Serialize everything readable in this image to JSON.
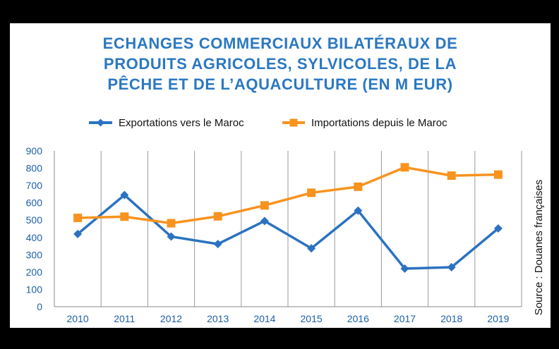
{
  "title_lines": [
    "ECHANGES COMMERCIAUX BILATÉRAUX DE",
    "PRODUITS AGRICOLES, SYLVICOLES, DE LA",
    "PÊCHE ET DE L’AQUACULTURE (EN M EUR)"
  ],
  "source": "Source : Douanes françaises",
  "colors": {
    "exports": "#2b72c0",
    "imports": "#f7931e",
    "title": "#2b78c2",
    "ticks": "#1f5fa8"
  },
  "chart_data": {
    "type": "line",
    "title": "ECHANGES COMMERCIAUX BILATÉRAUX DE PRODUITS AGRICOLES, SYLVICOLES, DE LA PÊCHE ET DE L’AQUACULTURE (EN M EUR)",
    "categories": [
      "2010",
      "2011",
      "2012",
      "2013",
      "2014",
      "2015",
      "2016",
      "2017",
      "2018",
      "2019"
    ],
    "series": [
      {
        "name": "Exportations vers le Maroc",
        "marker": "diamond",
        "values": [
          420,
          645,
          405,
          362,
          495,
          337,
          555,
          220,
          228,
          452
        ]
      },
      {
        "name": "Importations depuis le Maroc",
        "marker": "square",
        "values": [
          513,
          520,
          482,
          522,
          585,
          658,
          693,
          805,
          757,
          763
        ]
      }
    ],
    "yticks": [
      "0",
      "100",
      "200",
      "300",
      "400",
      "500",
      "600",
      "700",
      "800",
      "900"
    ],
    "ylim": [
      0,
      900
    ],
    "grid": "vertical",
    "legend": "top"
  }
}
